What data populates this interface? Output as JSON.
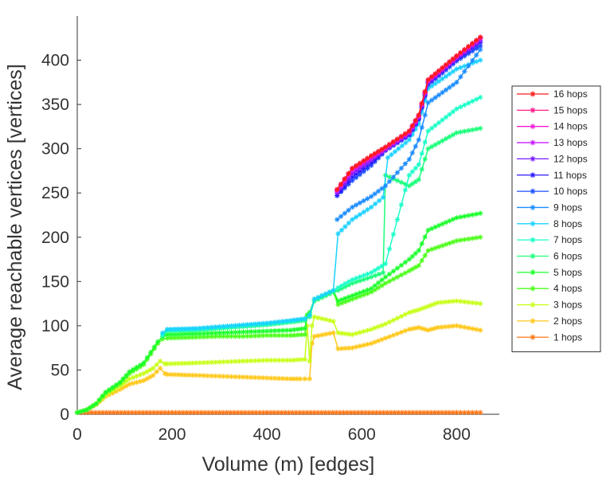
{
  "chart_data": {
    "type": "line",
    "title": "",
    "xlabel": "Volume (m) [edges]",
    "ylabel": "Average reachable vertices [vertices]",
    "xlim": [
      0,
      890
    ],
    "ylim": [
      0,
      450
    ],
    "xticks": [
      0,
      200,
      400,
      600,
      800
    ],
    "yticks": [
      0,
      50,
      100,
      150,
      200,
      250,
      300,
      350,
      400
    ],
    "grid": false,
    "legend_position": "right",
    "marker": "asterisk",
    "series": [
      {
        "name": "16 hops",
        "color": "#ff1a1a",
        "x": [
          548,
          580,
          620,
          650,
          700,
          720,
          740,
          800,
          850
        ],
        "y": [
          254,
          278,
          292,
          302,
          320,
          338,
          378,
          405,
          426
        ]
      },
      {
        "name": "15 hops",
        "color": "#ff1a8c",
        "x": [
          548,
          580,
          620,
          650,
          700,
          720,
          740,
          800,
          850
        ],
        "y": [
          254,
          278,
          292,
          302,
          320,
          338,
          378,
          405,
          426
        ]
      },
      {
        "name": "14 hops",
        "color": "#f01ad2",
        "x": [
          548,
          580,
          620,
          650,
          700,
          720,
          740,
          800,
          850
        ],
        "y": [
          253,
          277,
          291,
          301,
          319,
          337,
          377,
          404,
          425
        ]
      },
      {
        "name": "13 hops",
        "color": "#c81aff",
        "x": [
          548,
          580,
          620,
          650,
          700,
          720,
          740,
          800,
          850
        ],
        "y": [
          252,
          275,
          289,
          300,
          318,
          336,
          376,
          403,
          424
        ]
      },
      {
        "name": "12 hops",
        "color": "#7a1aff",
        "x": [
          548,
          580,
          620,
          650,
          700,
          720,
          740,
          800,
          850
        ],
        "y": [
          250,
          272,
          287,
          299,
          317,
          335,
          375,
          402,
          422
        ]
      },
      {
        "name": "11 hops",
        "color": "#2b1aff",
        "x": [
          548,
          580,
          620,
          650,
          700,
          720,
          740,
          800,
          850
        ],
        "y": [
          247,
          268,
          284,
          298,
          316,
          334,
          374,
          401,
          420
        ]
      },
      {
        "name": "10 hops",
        "color": "#1a4dff",
        "x": [
          548,
          580,
          620,
          650,
          700,
          720,
          740,
          800,
          850
        ],
        "y": [
          247,
          264,
          281,
          298,
          315,
          333,
          372,
          399,
          416
        ]
      },
      {
        "name": "9 hops",
        "color": "#1a8cff",
        "x": [
          548,
          580,
          620,
          650,
          700,
          720,
          740,
          800,
          850
        ],
        "y": [
          220,
          234,
          246,
          258,
          288,
          310,
          352,
          375,
          412
        ]
      },
      {
        "name": "8 hops",
        "color": "#1ad2ff",
        "x": [
          180,
          190,
          250,
          300,
          350,
          400,
          450,
          480,
          490,
          500,
          540,
          550,
          580,
          620,
          645,
          655,
          700,
          720,
          740,
          800,
          850
        ],
        "y": [
          92,
          96,
          97,
          99,
          101,
          103,
          106,
          108,
          112,
          130,
          140,
          204,
          220,
          234,
          245,
          290,
          310,
          328,
          368,
          390,
          400
        ]
      },
      {
        "name": "7 hops",
        "color": "#1affc8",
        "x": [
          180,
          190,
          250,
          300,
          350,
          400,
          450,
          480,
          490,
          500,
          540,
          550,
          580,
          620,
          650,
          700,
          720,
          740,
          800,
          850
        ],
        "y": [
          90,
          95,
          96,
          98,
          100,
          102,
          105,
          108,
          112,
          130,
          140,
          143,
          152,
          160,
          170,
          270,
          282,
          320,
          345,
          358
        ]
      },
      {
        "name": "6 hops",
        "color": "#1aff7a",
        "x": [
          180,
          190,
          250,
          300,
          350,
          400,
          450,
          480,
          490,
          500,
          540,
          550,
          580,
          620,
          645,
          650,
          700,
          720,
          740,
          800,
          850
        ],
        "y": [
          88,
          94,
          95,
          97,
          99,
          101,
          104,
          106,
          110,
          128,
          138,
          140,
          148,
          155,
          160,
          270,
          258,
          265,
          300,
          318,
          323
        ]
      },
      {
        "name": "5 hops",
        "color": "#1aff2b",
        "x": [
          0,
          20,
          40,
          60,
          90,
          110,
          140,
          155,
          170,
          180,
          190,
          250,
          300,
          350,
          400,
          450,
          480,
          485,
          490,
          500,
          540,
          550,
          580,
          620,
          650,
          700,
          720,
          740,
          800,
          850
        ],
        "y": [
          2,
          5,
          12,
          25,
          36,
          48,
          58,
          70,
          82,
          88,
          90,
          91,
          92,
          93,
          94,
          95,
          97,
          112,
          115,
          130,
          140,
          128,
          134,
          142,
          155,
          175,
          185,
          208,
          222,
          227
        ]
      },
      {
        "name": "4 hops",
        "color": "#4dff1a",
        "x": [
          0,
          20,
          40,
          60,
          90,
          110,
          140,
          155,
          170,
          180,
          190,
          250,
          300,
          350,
          400,
          450,
          480,
          485,
          490,
          500,
          540,
          550,
          580,
          620,
          650,
          700,
          720,
          740,
          800,
          850
        ],
        "y": [
          2,
          5,
          12,
          24,
          35,
          46,
          56,
          68,
          80,
          85,
          86,
          87,
          88,
          88,
          89,
          89,
          90,
          112,
          113,
          128,
          138,
          124,
          130,
          138,
          148,
          162,
          168,
          185,
          196,
          200
        ]
      },
      {
        "name": "3 hops",
        "color": "#c8ff1a",
        "x": [
          0,
          20,
          40,
          60,
          90,
          110,
          140,
          160,
          175,
          185,
          190,
          250,
          300,
          350,
          400,
          450,
          480,
          485,
          490,
          495,
          500,
          540,
          550,
          580,
          620,
          650,
          700,
          720,
          740,
          760,
          800,
          850
        ],
        "y": [
          2,
          5,
          12,
          22,
          32,
          40,
          46,
          52,
          60,
          57,
          57,
          58,
          59,
          60,
          61,
          61,
          62,
          100,
          60,
          100,
          110,
          105,
          92,
          90,
          96,
          102,
          115,
          118,
          122,
          126,
          128,
          125
        ]
      },
      {
        "name": "2 hops",
        "color": "#ffc81a",
        "x": [
          0,
          20,
          40,
          60,
          90,
          110,
          140,
          160,
          175,
          185,
          190,
          250,
          300,
          350,
          400,
          450,
          470,
          480,
          490,
          495,
          500,
          540,
          550,
          580,
          620,
          650,
          700,
          720,
          740,
          760,
          800,
          850
        ],
        "y": [
          2,
          5,
          11,
          20,
          28,
          34,
          38,
          44,
          52,
          46,
          45,
          44,
          43,
          42,
          41,
          40,
          40,
          40,
          40,
          80,
          88,
          92,
          74,
          75,
          80,
          86,
          96,
          98,
          95,
          98,
          100,
          95
        ]
      },
      {
        "name": "1 hops",
        "color": "#ff7a1a",
        "x": [
          0,
          100,
          200,
          300,
          400,
          500,
          600,
          700,
          800,
          850
        ],
        "y": [
          2,
          2,
          2,
          2,
          2,
          2,
          2,
          2,
          2,
          2
        ]
      }
    ]
  }
}
